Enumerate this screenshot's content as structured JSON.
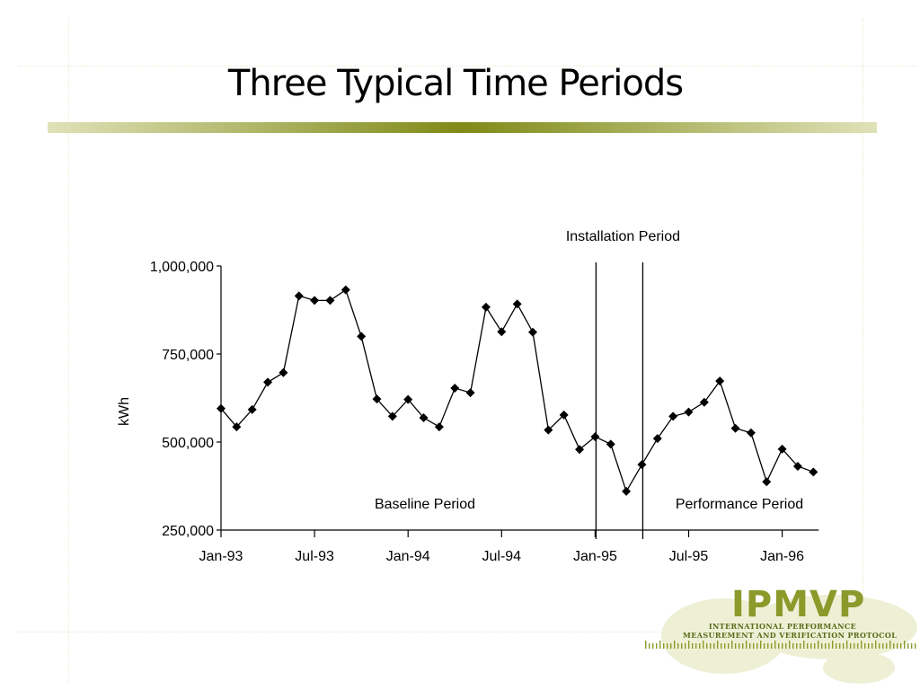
{
  "slide": {
    "title": "Three Typical Time Periods"
  },
  "colors": {
    "title_bar_center": "#7f8a17",
    "title_bar_edge": "#dfe2b8",
    "logo_green": "#8b9a2a",
    "series": "#000000"
  },
  "logo": {
    "name": "IPMVP",
    "line1": "INTERNATIONAL PERFORMANCE",
    "line2": "MEASUREMENT AND VERIFICATION PROTOCOL",
    "icon": "world-map-icon"
  },
  "chart_data": {
    "type": "line",
    "ylabel": "kWh",
    "xlabel": "",
    "ylim": [
      250000,
      1000000
    ],
    "yticks": [
      250000,
      500000,
      750000,
      1000000
    ],
    "ytick_labels": [
      "250,000",
      "500,000",
      "750,000",
      "1,000,000"
    ],
    "xticks": [
      "Jan-93",
      "Jul-93",
      "Jan-94",
      "Jul-94",
      "Jan-95",
      "Jul-95",
      "Jan-96"
    ],
    "x": [
      "Jan-93",
      "Feb-93",
      "Mar-93",
      "Apr-93",
      "May-93",
      "Jun-93",
      "Jul-93",
      "Aug-93",
      "Sep-93",
      "Oct-93",
      "Nov-93",
      "Dec-93",
      "Jan-94",
      "Feb-94",
      "Mar-94",
      "Apr-94",
      "May-94",
      "Jun-94",
      "Jul-94",
      "Aug-94",
      "Sep-94",
      "Oct-94",
      "Nov-94",
      "Dec-94",
      "Jan-95",
      "Feb-95",
      "Mar-95",
      "Apr-95",
      "May-95",
      "Jun-95",
      "Jul-95",
      "Aug-95",
      "Sep-95",
      "Oct-95",
      "Nov-95",
      "Dec-95",
      "Jan-96",
      "Feb-96",
      "Mar-96"
    ],
    "values": [
      595000,
      543000,
      592000,
      670000,
      697000,
      915000,
      902000,
      902000,
      932000,
      800000,
      622000,
      573000,
      621000,
      569000,
      543000,
      653000,
      640000,
      883000,
      813000,
      892000,
      812000,
      534000,
      577000,
      479000,
      515000,
      494000,
      360000,
      436000,
      510000,
      573000,
      585000,
      613000,
      673000,
      539000,
      526000,
      387000,
      480000,
      431000,
      415000
    ],
    "marker": "diamond",
    "grid": false,
    "legend": "none",
    "annotations": {
      "installation": "Installation Period",
      "baseline": "Baseline Period",
      "performance": "Performance Period"
    },
    "period_boundaries": [
      "Jan-95",
      "Apr-95"
    ]
  }
}
